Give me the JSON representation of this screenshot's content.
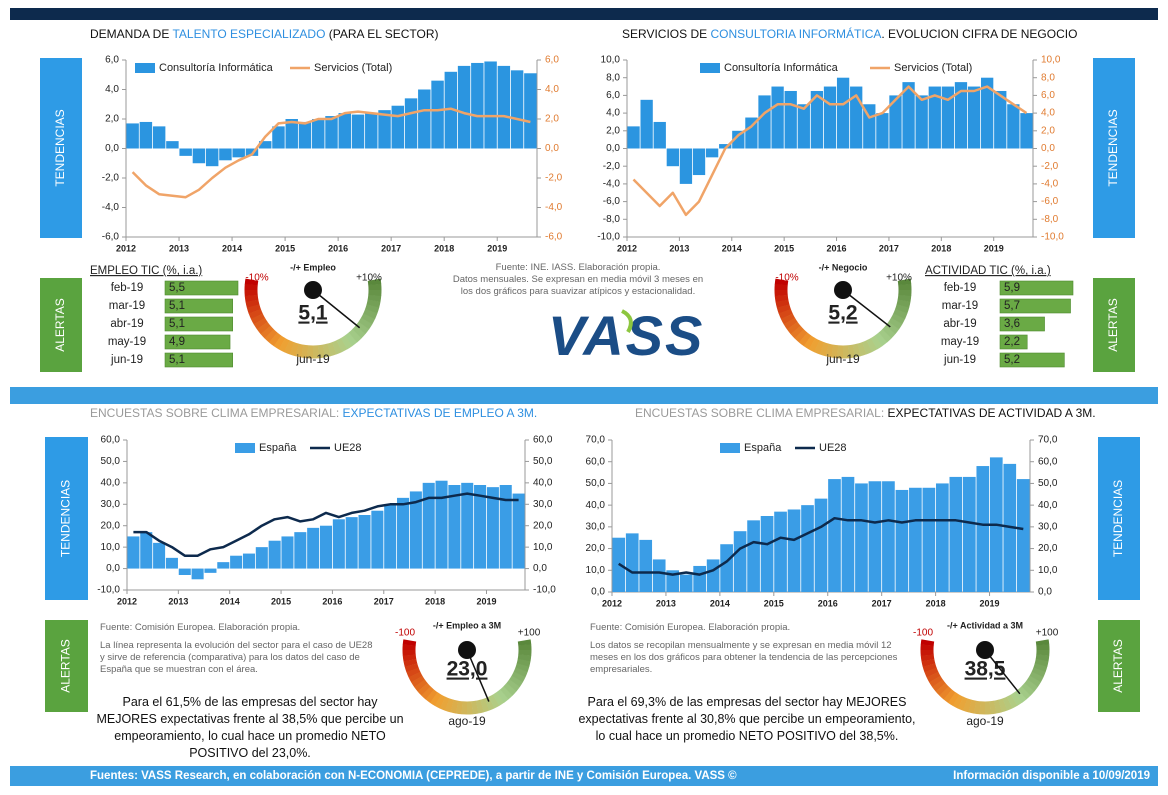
{
  "chart_data": [
    {
      "type": "combo",
      "title_parts": [
        "DEMANDA DE ",
        "TALENTO ESPECIALIZADO",
        " (PARA EL SECTOR)"
      ],
      "title_colors": [
        "#111111",
        "#2e8fe0",
        "#111111"
      ],
      "x": [
        2012,
        2012.25,
        2012.5,
        2012.75,
        2013,
        2013.25,
        2013.5,
        2013.75,
        2014,
        2014.25,
        2014.5,
        2014.75,
        2015,
        2015.25,
        2015.5,
        2015.75,
        2016,
        2016.25,
        2016.5,
        2016.75,
        2017,
        2017.25,
        2017.5,
        2017.75,
        2018,
        2018.25,
        2018.5,
        2018.75,
        2019,
        2019.25,
        2019.5
      ],
      "xlim": [
        2012,
        2019.75
      ],
      "xticks": [
        2012,
        2013,
        2014,
        2015,
        2016,
        2017,
        2018,
        2019
      ],
      "ylim": [
        -6,
        6
      ],
      "yticks": [
        {
          "value": 6,
          "label": "6,0"
        },
        {
          "value": 4,
          "label": "4,0"
        },
        {
          "value": 2,
          "label": "2,0"
        },
        {
          "value": 0,
          "label": "0,0"
        },
        {
          "value": -2,
          "label": "-2,0"
        },
        {
          "value": -4,
          "label": "-4,0"
        },
        {
          "value": -6,
          "label": "-6,0"
        }
      ],
      "y2lim": [
        -6,
        6
      ],
      "y2ticks": [
        {
          "value": 6,
          "label": "6,0"
        },
        {
          "value": 4,
          "label": "4,0"
        },
        {
          "value": 2,
          "label": "2,0"
        },
        {
          "value": 0,
          "label": "0,0"
        },
        {
          "value": -2,
          "label": "-2,0"
        },
        {
          "value": -4,
          "label": "-4,0"
        },
        {
          "value": -6,
          "label": "-6,0"
        }
      ],
      "y2_color": "#e07b30",
      "legend": "top",
      "series": [
        {
          "name": "Consultoría Informática",
          "kind": "bar",
          "color": "#2b95e0",
          "values": [
            1.7,
            1.8,
            1.5,
            0.5,
            -0.5,
            -1.0,
            -1.2,
            -0.8,
            -0.6,
            -0.5,
            0.5,
            1.5,
            2.0,
            1.8,
            2.0,
            2.2,
            2.4,
            2.3,
            2.4,
            2.6,
            2.9,
            3.4,
            4.0,
            4.6,
            5.2,
            5.6,
            5.8,
            5.9,
            5.6,
            5.3,
            5.1
          ]
        },
        {
          "name": "Servicios (Total)",
          "kind": "line",
          "axis": "y2",
          "color": "#f0a468",
          "values": [
            -1.6,
            -2.5,
            -3.1,
            -3.2,
            -3.3,
            -2.8,
            -2.0,
            -1.3,
            -0.8,
            -0.4,
            0.8,
            1.7,
            1.8,
            1.7,
            2.0,
            2.0,
            2.4,
            2.5,
            2.4,
            2.3,
            2.2,
            2.4,
            2.6,
            2.6,
            2.7,
            2.4,
            2.2,
            2.2,
            2.2,
            2.0,
            1.8
          ]
        }
      ]
    },
    {
      "type": "combo",
      "title_parts": [
        "SERVICIOS DE ",
        "CONSULTORIA INFORMÁTICA",
        ". EVOLUCION CIFRA DE NEGOCIO"
      ],
      "title_colors": [
        "#111111",
        "#2e8fe0",
        "#111111"
      ],
      "x": [
        2012,
        2012.25,
        2012.5,
        2012.75,
        2013,
        2013.25,
        2013.5,
        2013.75,
        2014,
        2014.25,
        2014.5,
        2014.75,
        2015,
        2015.25,
        2015.5,
        2015.75,
        2016,
        2016.25,
        2016.5,
        2016.75,
        2017,
        2017.25,
        2017.5,
        2017.75,
        2018,
        2018.25,
        2018.5,
        2018.75,
        2019,
        2019.25,
        2019.5
      ],
      "xlim": [
        2012,
        2019.75
      ],
      "xticks": [
        2012,
        2013,
        2014,
        2015,
        2016,
        2017,
        2018,
        2019
      ],
      "ylim": [
        -10,
        10
      ],
      "yticks": [
        {
          "value": 10,
          "label": "10,0"
        },
        {
          "value": 8,
          "label": "8,0"
        },
        {
          "value": 6,
          "label": "6,0"
        },
        {
          "value": 4,
          "label": "4,0"
        },
        {
          "value": 2,
          "label": "2,0"
        },
        {
          "value": 0,
          "label": "0,0"
        },
        {
          "value": -2,
          "label": "-2,0"
        },
        {
          "value": -4,
          "label": "-4,0"
        },
        {
          "value": -6,
          "label": "-6,0"
        },
        {
          "value": -8,
          "label": "-8,0"
        },
        {
          "value": -10,
          "label": "-10,0"
        }
      ],
      "y2lim": [
        -10,
        10
      ],
      "y2ticks": [
        {
          "value": 10,
          "label": "10,0"
        },
        {
          "value": 8,
          "label": "8,0"
        },
        {
          "value": 6,
          "label": "6,0"
        },
        {
          "value": 4,
          "label": "4,0"
        },
        {
          "value": 2,
          "label": "2,0"
        },
        {
          "value": 0,
          "label": "0,0"
        },
        {
          "value": -2,
          "label": "-2,0"
        },
        {
          "value": -4,
          "label": "-4,0"
        },
        {
          "value": -6,
          "label": "-6,0"
        },
        {
          "value": -8,
          "label": "-8,0"
        },
        {
          "value": -10,
          "label": "-10,0"
        }
      ],
      "y2_color": "#e07b30",
      "legend": "top",
      "series": [
        {
          "name": "Consultoría Informática",
          "kind": "bar",
          "color": "#2b95e0",
          "values": [
            2.5,
            5.5,
            3,
            -2,
            -4,
            -3,
            -1,
            0.5,
            2,
            3.5,
            6,
            7,
            6.5,
            5,
            6.5,
            7,
            8,
            7,
            5,
            4,
            6,
            7.5,
            6,
            7,
            7,
            7.5,
            7,
            8,
            6.5,
            5,
            4
          ]
        },
        {
          "name": "Servicios (Total)",
          "kind": "line",
          "axis": "y2",
          "color": "#f0a468",
          "values": [
            -3.5,
            -5,
            -6.5,
            -5,
            -7.5,
            -6,
            -3,
            0,
            1.5,
            2.5,
            4,
            5,
            5,
            4.5,
            6,
            5,
            5,
            6,
            3.5,
            4,
            5.5,
            7,
            5.5,
            6,
            5.5,
            6.5,
            6.5,
            7,
            6,
            5,
            4
          ]
        }
      ]
    },
    {
      "type": "combo",
      "title_parts": [
        "ENCUESTAS SOBRE CLIMA EMPRESARIAL: ",
        "EXPECTATIVAS DE EMPLEO A 3M."
      ],
      "title_colors": [
        "#9a9a9a",
        "#2e8fe0"
      ],
      "x": [
        2012,
        2012.25,
        2012.5,
        2012.75,
        2013,
        2013.25,
        2013.5,
        2013.75,
        2014,
        2014.25,
        2014.5,
        2014.75,
        2015,
        2015.25,
        2015.5,
        2015.75,
        2016,
        2016.25,
        2016.5,
        2016.75,
        2017,
        2017.25,
        2017.5,
        2017.75,
        2018,
        2018.25,
        2018.5,
        2018.75,
        2019,
        2019.25,
        2019.5
      ],
      "xlim": [
        2012,
        2019.75
      ],
      "xticks": [
        2012,
        2013,
        2014,
        2015,
        2016,
        2017,
        2018,
        2019
      ],
      "ylim": [
        -10,
        60
      ],
      "yticks": [
        {
          "value": 60,
          "label": "60,0"
        },
        {
          "value": 50,
          "label": "50,0"
        },
        {
          "value": 40,
          "label": "40,0"
        },
        {
          "value": 30,
          "label": "30,0"
        },
        {
          "value": 20,
          "label": "20,0"
        },
        {
          "value": 10,
          "label": "10,0"
        },
        {
          "value": 0,
          "label": "0,0"
        },
        {
          "value": -10,
          "label": "-10,0"
        }
      ],
      "y2lim": [
        -10,
        60
      ],
      "y2ticks": [
        {
          "value": 60,
          "label": "60,0"
        },
        {
          "value": 50,
          "label": "50,0"
        },
        {
          "value": 40,
          "label": "40,0"
        },
        {
          "value": 30,
          "label": "30,0"
        },
        {
          "value": 20,
          "label": "20,0"
        },
        {
          "value": 10,
          "label": "10,0"
        },
        {
          "value": 0,
          "label": "0,0"
        },
        {
          "value": -10,
          "label": "-10,0"
        }
      ],
      "y2_color": "#222222",
      "legend": "top",
      "series": [
        {
          "name": "España",
          "kind": "bar",
          "color": "#3a9de6",
          "values": [
            15,
            17,
            12,
            5,
            -3,
            -5,
            -2,
            3,
            6,
            7,
            10,
            13,
            15,
            17,
            19,
            20,
            23,
            24,
            25,
            27,
            30,
            33,
            36,
            40,
            41,
            39,
            40,
            39,
            38,
            39,
            35
          ]
        },
        {
          "name": "UE28",
          "kind": "line",
          "axis": "y2",
          "color": "#0d2a4d",
          "values": [
            17,
            17,
            13,
            10,
            6,
            6,
            9,
            10,
            13,
            16,
            20,
            23,
            24,
            22,
            23,
            26,
            24,
            26,
            27,
            29,
            30,
            30,
            31,
            33,
            33,
            34,
            35,
            34,
            33,
            32,
            32
          ]
        }
      ]
    },
    {
      "type": "combo",
      "title_parts": [
        "ENCUESTAS SOBRE CLIMA EMPRESARIAL: ",
        "EXPECTATIVAS DE ACTIVIDAD A 3M."
      ],
      "title_colors": [
        "#9a9a9a",
        "#111111"
      ],
      "x": [
        2012,
        2012.25,
        2012.5,
        2012.75,
        2013,
        2013.25,
        2013.5,
        2013.75,
        2014,
        2014.25,
        2014.5,
        2014.75,
        2015,
        2015.25,
        2015.5,
        2015.75,
        2016,
        2016.25,
        2016.5,
        2016.75,
        2017,
        2017.25,
        2017.5,
        2017.75,
        2018,
        2018.25,
        2018.5,
        2018.75,
        2019,
        2019.25,
        2019.5
      ],
      "xlim": [
        2012,
        2019.75
      ],
      "xticks": [
        2012,
        2013,
        2014,
        2015,
        2016,
        2017,
        2018,
        2019
      ],
      "ylim": [
        0,
        70
      ],
      "yticks": [
        {
          "value": 70,
          "label": "70,0"
        },
        {
          "value": 60,
          "label": "60,0"
        },
        {
          "value": 50,
          "label": "50,0"
        },
        {
          "value": 40,
          "label": "40,0"
        },
        {
          "value": 30,
          "label": "30,0"
        },
        {
          "value": 20,
          "label": "20,0"
        },
        {
          "value": 10,
          "label": "10,0"
        },
        {
          "value": 0,
          "label": "0,0"
        }
      ],
      "y2lim": [
        0,
        70
      ],
      "y2ticks": [
        {
          "value": 70,
          "label": "70,0"
        },
        {
          "value": 60,
          "label": "60,0"
        },
        {
          "value": 50,
          "label": "50,0"
        },
        {
          "value": 40,
          "label": "40,0"
        },
        {
          "value": 30,
          "label": "30,0"
        },
        {
          "value": 20,
          "label": "20,0"
        },
        {
          "value": 10,
          "label": "10,0"
        },
        {
          "value": 0,
          "label": "0,0"
        }
      ],
      "y2_color": "#222222",
      "legend": "top",
      "series": [
        {
          "name": "España",
          "kind": "bar",
          "color": "#3a9de6",
          "values": [
            25,
            27,
            24,
            15,
            10,
            8,
            12,
            15,
            22,
            28,
            33,
            35,
            37,
            38,
            40,
            43,
            52,
            53,
            50,
            51,
            51,
            47,
            48,
            48,
            50,
            53,
            53,
            58,
            62,
            59,
            52
          ]
        },
        {
          "name": "UE28",
          "kind": "line",
          "axis": "y2",
          "color": "#0d2a4d",
          "values": [
            13,
            9,
            9,
            9,
            8,
            9,
            8,
            10,
            14,
            20,
            23,
            22,
            25,
            24,
            27,
            30,
            34,
            33,
            33,
            32,
            33,
            32,
            33,
            33,
            33,
            33,
            32,
            31,
            31,
            30,
            29
          ]
        }
      ]
    }
  ],
  "side_labels": {
    "trends": "TENDENCIAS",
    "alerts": "ALERTAS"
  },
  "alerts": [
    {
      "table": {
        "title": "EMPLEO TIC (%, i.a.)",
        "color": "#6aaa45",
        "rows": [
          {
            "label": "feb-19",
            "value": 5.5,
            "value_label": "5,5"
          },
          {
            "label": "mar-19",
            "value": 5.1,
            "value_label": "5,1"
          },
          {
            "label": "abr-19",
            "value": 5.1,
            "value_label": "5,1"
          },
          {
            "label": "may-19",
            "value": 4.9,
            "value_label": "4,9"
          },
          {
            "label": "jun-19",
            "value": 5.1,
            "value_label": "5,1"
          }
        ]
      },
      "gauge": {
        "title": "-/+ Empleo",
        "range": [
          {
            "value": -10,
            "label": "-10%"
          },
          {
            "value": 10,
            "label": "+10%"
          }
        ],
        "value": 5.1,
        "value_label": "5,1",
        "date": "jun-19"
      }
    },
    {
      "table": {
        "title": "ACTIVIDAD TIC (%, i.a.)",
        "color": "#6aaa45",
        "rows": [
          {
            "label": "feb-19",
            "value": 5.9,
            "value_label": "5,9"
          },
          {
            "label": "mar-19",
            "value": 5.7,
            "value_label": "5,7"
          },
          {
            "label": "abr-19",
            "value": 3.6,
            "value_label": "3,6"
          },
          {
            "label": "may-19",
            "value": 2.2,
            "value_label": "2,2"
          },
          {
            "label": "jun-19",
            "value": 5.2,
            "value_label": "5,2"
          }
        ]
      },
      "gauge": {
        "title": "-/+ Negocio",
        "range": [
          {
            "value": -10,
            "label": "-10%"
          },
          {
            "value": 10,
            "label": "+10%"
          }
        ],
        "value": 5.2,
        "value_label": "5,2",
        "date": "jun-19"
      }
    },
    {
      "gauge": {
        "title": "-/+ Empleo a 3M",
        "range": [
          {
            "value": -100,
            "label": "-100"
          },
          {
            "value": 100,
            "label": "+100"
          }
        ],
        "value": 23.0,
        "value_label": "23,0",
        "date": "ago-19"
      }
    },
    {
      "gauge": {
        "title": "-/+ Actividad a 3M",
        "range": [
          {
            "value": -100,
            "label": "-100"
          },
          {
            "value": 100,
            "label": "+100"
          }
        ],
        "value": 38.5,
        "value_label": "38,5",
        "date": "ago-19"
      }
    }
  ],
  "notes": {
    "top": [
      "Fuente: INE. IASS. Elaboración propia.",
      "Datos mensuales. Se expresan en media móvil 3 meses  en los dos gráficos para suavizar atípicos y estacionalidad."
    ],
    "bottom_left": [
      "Fuente: Comisión Europea. Elaboración propia.",
      "La línea representa la evolución del sector para el caso de UE28 y sirve de referencia (comparativa) para los datos del caso de España que se muestran con el área."
    ],
    "bottom_right": [
      "Fuente: Comisión Europea. Elaboración propia.",
      "Los datos se recopilan mensualmente y  se expresan en media móvil 12 meses  en los dos gráficos para obtener la tendencia de las percepciones empresariales."
    ]
  },
  "summaries": [
    "Para el 61,5% de las empresas del sector hay MEJORES expectativas frente al 38,5% que percibe un empeoramiento, lo cual hace un promedio NETO POSITIVO del 23,0%.",
    "Para el 69,3% de las empresas del sector hay MEJORES expectativas frente al 30,8% que percibe un empeoramiento, lo cual hace un promedio NETO POSITIVO del 38,5%."
  ],
  "logo": "VASS",
  "footer": {
    "sources": "Fuentes: VASS Research, en colaboración con N-ECONOMIA (CEPREDE), a partir de INE y Comisión Europea. VASS ©",
    "date": "Información disponible a 10/09/2019"
  }
}
